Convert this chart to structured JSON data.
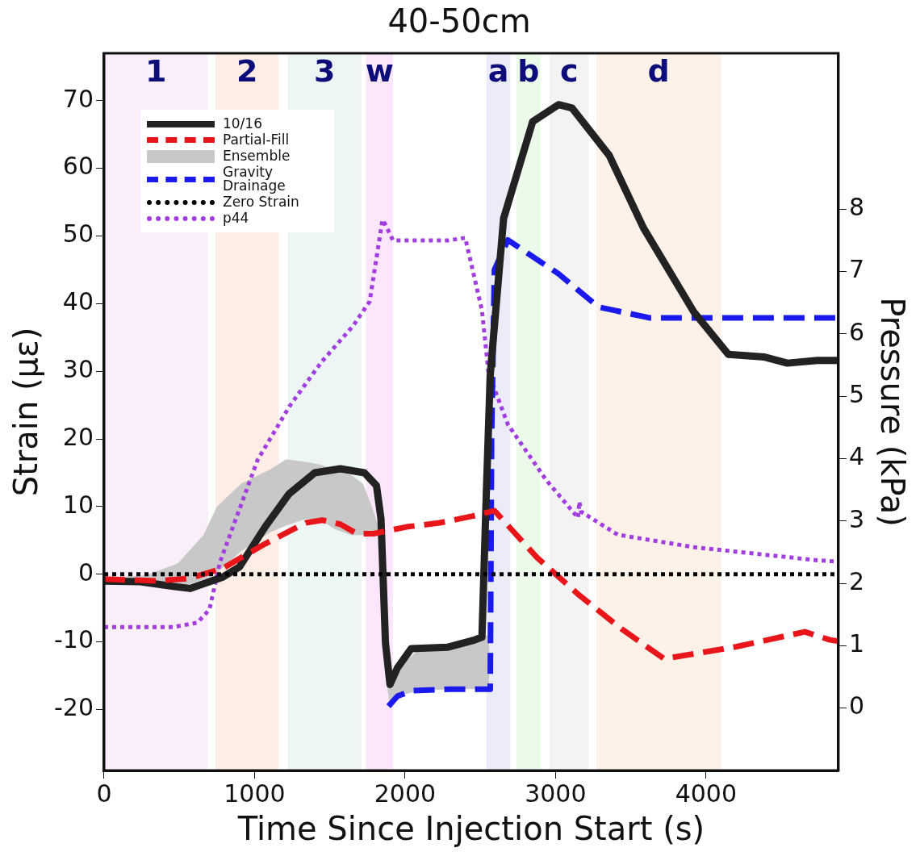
{
  "chart_data": {
    "type": "line",
    "title": "40-50cm",
    "xlabel": "Time Since Injection Start (s)",
    "ylabel": "Strain (με)",
    "y2label": "Pressure (kPa)",
    "xlim": [
      0,
      4880
    ],
    "xticks": [
      0,
      1000,
      2000,
      3000,
      4000
    ],
    "ylim": [
      -29,
      77
    ],
    "yticks": [
      -20,
      -10,
      0,
      10,
      20,
      30,
      40,
      50,
      60,
      70
    ],
    "y2lim": [
      -1,
      10.5
    ],
    "y2ticks": [
      0,
      1,
      2,
      3,
      4,
      5,
      6,
      7,
      8
    ],
    "grid": false,
    "legend": "top left",
    "marker": "none",
    "bands": [
      {
        "axis": "x",
        "from": 0,
        "to": 690,
        "label": "1",
        "color": "#fbeefb"
      },
      {
        "axis": "x",
        "from": 740,
        "to": 1160,
        "label": "2",
        "color": "#fdede5"
      },
      {
        "axis": "x",
        "from": 1220,
        "to": 1710,
        "label": "3",
        "color": "#edf5f5"
      },
      {
        "axis": "x",
        "from": 1740,
        "to": 1920,
        "label": "w",
        "color": "#fbe6fb"
      },
      {
        "axis": "x",
        "from": 2540,
        "to": 2700,
        "label": "a",
        "color": "#ebecf8"
      },
      {
        "axis": "x",
        "from": 2740,
        "to": 2900,
        "label": "b",
        "color": "#ecfaea"
      },
      {
        "axis": "x",
        "from": 2960,
        "to": 3220,
        "label": "c",
        "color": "#f3f3f3"
      },
      {
        "axis": "x",
        "from": 3270,
        "to": 4100,
        "label": "d",
        "color": "#fdf1e8"
      }
    ],
    "series": [
      {
        "name": "Ensemble",
        "type": "area",
        "color": "#c8c8c8",
        "x": [
          0,
          275,
          490,
          660,
          750,
          910,
          1105,
          1210,
          1340,
          1440,
          1530,
          1640,
          1720,
          1780,
          1840,
          1870,
          1900,
          1950,
          2100,
          2300,
          2520,
          2560
        ],
        "values": [
          null,
          null,
          null,
          null,
          null,
          null,
          null,
          null,
          null,
          null,
          null,
          null,
          null,
          null,
          null,
          null,
          null,
          null,
          null,
          null,
          null,
          null
        ],
        "upper": [
          -0.5,
          -0.2,
          1.6,
          5.8,
          10,
          13.4,
          15.5,
          17,
          16.6,
          16.2,
          15.4,
          14.7,
          13.4,
          10,
          6,
          -8,
          -16,
          -13.8,
          -11,
          -10.8,
          -9.2,
          -9
        ],
        "lower": [
          -1,
          -1,
          -2,
          -0.8,
          0.2,
          3.4,
          6.2,
          7.2,
          8.2,
          8,
          6.7,
          5.8,
          5.8,
          5.8,
          5.8,
          -15,
          -19.5,
          -18,
          -17.2,
          -17,
          -17,
          -17
        ]
      },
      {
        "name": "Zero Strain",
        "type": "line",
        "color": "#000000",
        "line_style": "dotted",
        "x": [
          0,
          4880
        ],
        "values": [
          0,
          0
        ]
      },
      {
        "name": "Partial-Fill",
        "type": "line",
        "color": "#e8151b",
        "line_style": "dashed",
        "x": [
          0,
          350,
          570,
          790,
          1070,
          1340,
          1450,
          1570,
          1680,
          1790,
          2010,
          2230,
          2450,
          2594,
          2876,
          3158,
          3440,
          3722,
          4203,
          4657,
          4823,
          4880
        ],
        "values": [
          -0.7,
          -1,
          -0.6,
          0.9,
          4.5,
          7.6,
          8,
          7.4,
          6,
          6,
          7,
          7.6,
          8.6,
          9.4,
          2.5,
          -3.1,
          -8.1,
          -12.5,
          -10.7,
          -8.5,
          -9.7,
          -9.9
        ]
      },
      {
        "name": "10/16",
        "type": "line",
        "color": "#222222",
        "line_style": "solid",
        "x": [
          0,
          240,
          460,
          570,
          790,
          900,
          1070,
          1230,
          1400,
          1570,
          1730,
          1810,
          1840,
          1870,
          1900,
          1950,
          2040,
          2280,
          2450,
          2511,
          2540,
          2566,
          2655,
          2848,
          3020,
          3110,
          3357,
          3584,
          3921,
          4148,
          4390,
          4541,
          4740,
          4880
        ],
        "values": [
          -1,
          -1.1,
          -1.8,
          -2.1,
          -0.4,
          1.1,
          7,
          11.9,
          15,
          15.6,
          15,
          13.1,
          8.2,
          -10.2,
          -16.3,
          -13.8,
          -11,
          -10.8,
          -9.8,
          -9.3,
          11.9,
          29.4,
          52.6,
          66.9,
          69.4,
          68.9,
          61.9,
          51.2,
          38.7,
          32.5,
          32.1,
          31.2,
          31.6,
          31.6
        ]
      },
      {
        "name": "Gravity Drainage",
        "type": "line",
        "color": "#1a1aee",
        "line_style": "dashed",
        "x": [
          1890,
          1950,
          2050,
          2300,
          2560,
          2566,
          2575,
          2594,
          2683,
          3020,
          3285,
          3623,
          4049,
          4880
        ],
        "values": [
          -19.5,
          -18,
          -17.2,
          -17,
          -17,
          -17,
          20,
          45,
          49.4,
          44.4,
          39.5,
          37.9,
          37.9,
          37.9
        ]
      },
      {
        "name": "p44",
        "type": "line",
        "axis": "y2",
        "color": "#a23ee0",
        "line_style": "dotted",
        "x": [
          0,
          460,
          620,
          700,
          770,
          1020,
          1235,
          1445,
          1655,
          1765,
          1805,
          1850,
          1870,
          1920,
          2290,
          2400,
          2511,
          2555,
          2683,
          2937,
          3150,
          3158,
          3170,
          3413,
          3921,
          4740,
          4880
        ],
        "values": [
          1.3,
          1.3,
          1.37,
          1.58,
          2.34,
          3.98,
          4.85,
          5.55,
          6.13,
          6.52,
          7.14,
          7.83,
          7.75,
          7.5,
          7.5,
          7.54,
          6.38,
          5.37,
          4.55,
          3.66,
          3.05,
          3.31,
          3.15,
          2.78,
          2.58,
          2.37,
          2.35
        ]
      }
    ]
  }
}
